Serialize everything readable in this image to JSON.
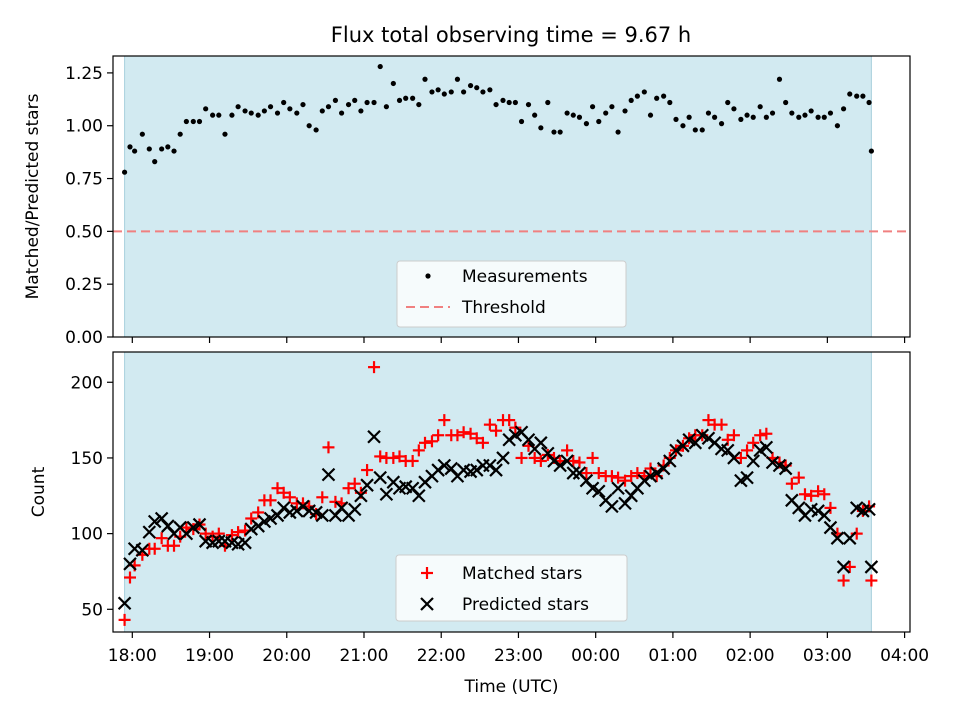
{
  "figure_title": "Flux total observing time = 9.67 h",
  "chart_data": [
    {
      "type": "scatter",
      "panel": "top",
      "title": "Flux total observing time = 9.67 h",
      "xlabel": "",
      "ylabel": "Matched/Predicted stars",
      "xlim": [
        17.75,
        28.07
      ],
      "ylim": [
        0.0,
        1.33
      ],
      "yticks": [
        0.0,
        0.25,
        0.5,
        0.75,
        1.0,
        1.25
      ],
      "ytick_labels": [
        "0.00",
        "0.25",
        "0.50",
        "0.75",
        "1.00",
        "1.25"
      ],
      "shaded_x_range": [
        17.9,
        27.57
      ],
      "shade_color": "#add8e6",
      "legend_position": "lower-center",
      "series": [
        {
          "name": "Measurements",
          "marker": "dot",
          "color": "#000000",
          "x": [
            17.9,
            17.97,
            18.03,
            18.13,
            18.22,
            18.29,
            18.38,
            18.46,
            18.54,
            18.62,
            18.7,
            18.79,
            18.87,
            18.95,
            19.04,
            19.12,
            19.2,
            19.29,
            19.37,
            19.46,
            19.54,
            19.63,
            19.71,
            19.79,
            19.88,
            19.96,
            20.04,
            20.13,
            20.21,
            20.29,
            20.38,
            20.46,
            20.54,
            20.63,
            20.71,
            20.8,
            20.88,
            20.96,
            21.04,
            21.13,
            21.21,
            21.29,
            21.38,
            21.46,
            21.54,
            21.63,
            21.71,
            21.79,
            21.88,
            21.96,
            22.04,
            22.13,
            22.21,
            22.29,
            22.38,
            22.46,
            22.54,
            22.63,
            22.71,
            22.8,
            22.88,
            22.96,
            23.04,
            23.13,
            23.21,
            23.29,
            23.38,
            23.46,
            23.54,
            23.63,
            23.71,
            23.79,
            23.88,
            23.96,
            24.04,
            24.13,
            24.21,
            24.29,
            24.38,
            24.46,
            24.54,
            24.63,
            24.71,
            24.79,
            24.88,
            24.96,
            25.04,
            25.13,
            25.21,
            25.29,
            25.38,
            25.46,
            25.54,
            25.63,
            25.71,
            25.79,
            25.88,
            25.96,
            26.04,
            26.13,
            26.21,
            26.29,
            26.38,
            26.46,
            26.54,
            26.63,
            26.71,
            26.79,
            26.88,
            26.96,
            27.04,
            27.13,
            27.21,
            27.29,
            27.38,
            27.46,
            27.54,
            27.57
          ],
          "y": [
            0.78,
            0.9,
            0.88,
            0.96,
            0.89,
            0.83,
            0.89,
            0.9,
            0.88,
            0.96,
            1.02,
            1.02,
            1.02,
            1.08,
            1.05,
            1.05,
            0.96,
            1.05,
            1.09,
            1.07,
            1.06,
            1.05,
            1.07,
            1.09,
            1.06,
            1.11,
            1.08,
            1.06,
            1.1,
            1.0,
            0.98,
            1.07,
            1.09,
            1.12,
            1.06,
            1.1,
            1.12,
            1.07,
            1.11,
            1.11,
            1.28,
            1.09,
            1.2,
            1.12,
            1.13,
            1.13,
            1.1,
            1.22,
            1.16,
            1.17,
            1.15,
            1.16,
            1.22,
            1.16,
            1.19,
            1.18,
            1.16,
            1.17,
            1.1,
            1.12,
            1.11,
            1.11,
            1.02,
            1.1,
            1.05,
            0.99,
            1.11,
            0.97,
            0.97,
            1.06,
            1.05,
            1.04,
            1.01,
            1.09,
            1.02,
            1.06,
            1.09,
            0.97,
            1.07,
            1.12,
            1.14,
            1.16,
            1.05,
            1.13,
            1.14,
            1.11,
            1.03,
            1.0,
            1.04,
            0.98,
            0.98,
            1.06,
            1.04,
            1.01,
            1.11,
            1.08,
            1.03,
            1.05,
            1.04,
            1.09,
            1.04,
            1.06,
            1.22,
            1.11,
            1.06,
            1.04,
            1.05,
            1.07,
            1.04,
            1.04,
            1.06,
            1.0,
            1.08,
            1.15,
            1.14,
            1.14,
            1.11,
            0.88
          ]
        },
        {
          "name": "Threshold",
          "type": "hline",
          "style": "dashed",
          "color": "#f08080",
          "y": 0.5
        }
      ]
    },
    {
      "type": "scatter",
      "panel": "bottom",
      "title": "",
      "xlabel": "Time (UTC)",
      "ylabel": "Count",
      "xlim": [
        17.75,
        28.07
      ],
      "ylim": [
        35,
        220
      ],
      "yticks": [
        50,
        100,
        150,
        200
      ],
      "ytick_labels": [
        "50",
        "100",
        "150",
        "200"
      ],
      "xticks": [
        18,
        19,
        20,
        21,
        22,
        23,
        24,
        25,
        26,
        27,
        28
      ],
      "xtick_labels": [
        "18:00",
        "19:00",
        "20:00",
        "21:00",
        "22:00",
        "23:00",
        "00:00",
        "01:00",
        "02:00",
        "03:00",
        "04:00"
      ],
      "shaded_x_range": [
        17.9,
        27.57
      ],
      "shade_color": "#add8e6",
      "legend_position": "lower-center",
      "x": [
        17.9,
        17.97,
        18.03,
        18.13,
        18.22,
        18.29,
        18.38,
        18.46,
        18.54,
        18.62,
        18.7,
        18.79,
        18.87,
        18.95,
        19.04,
        19.12,
        19.2,
        19.29,
        19.37,
        19.46,
        19.54,
        19.63,
        19.71,
        19.79,
        19.88,
        19.96,
        20.04,
        20.13,
        20.21,
        20.29,
        20.38,
        20.46,
        20.54,
        20.63,
        20.71,
        20.8,
        20.88,
        20.96,
        21.04,
        21.13,
        21.21,
        21.29,
        21.38,
        21.46,
        21.54,
        21.63,
        21.71,
        21.79,
        21.88,
        21.96,
        22.04,
        22.13,
        22.21,
        22.29,
        22.38,
        22.46,
        22.54,
        22.63,
        22.71,
        22.8,
        22.88,
        22.96,
        23.04,
        23.13,
        23.21,
        23.29,
        23.38,
        23.46,
        23.54,
        23.63,
        23.71,
        23.79,
        23.88,
        23.96,
        24.04,
        24.13,
        24.21,
        24.29,
        24.38,
        24.46,
        24.54,
        24.63,
        24.71,
        24.79,
        24.88,
        24.96,
        25.04,
        25.13,
        25.21,
        25.29,
        25.38,
        25.46,
        25.54,
        25.63,
        25.71,
        25.79,
        25.88,
        25.96,
        26.04,
        26.13,
        26.21,
        26.29,
        26.38,
        26.46,
        26.54,
        26.63,
        26.71,
        26.79,
        26.88,
        26.96,
        27.04,
        27.13,
        27.21,
        27.29,
        27.38,
        27.46,
        27.54,
        27.57
      ],
      "series": [
        {
          "name": "Matched stars",
          "marker": "plus",
          "color": "#ff0000",
          "values": [
            43,
            71,
            79,
            86,
            90,
            90,
            97,
            92,
            92,
            98,
            104,
            103,
            106,
            100,
            98,
            100,
            92,
            99,
            101,
            102,
            110,
            114,
            122,
            122,
            130,
            127,
            124,
            120,
            120,
            118,
            113,
            124,
            157,
            121,
            120,
            130,
            133,
            127,
            142,
            210,
            151,
            150,
            150,
            151,
            148,
            148,
            155,
            160,
            161,
            165,
            175,
            165,
            165,
            167,
            166,
            163,
            160,
            172,
            168,
            175,
            175,
            170,
            150,
            158,
            150,
            148,
            152,
            150,
            148,
            155,
            148,
            147,
            140,
            150,
            140,
            138,
            138,
            137,
            135,
            138,
            140,
            138,
            143,
            138,
            145,
            150,
            155,
            158,
            163,
            165,
            165,
            175,
            172,
            172,
            162,
            165,
            150,
            155,
            160,
            165,
            166,
            150,
            147,
            145,
            133,
            137,
            126,
            125,
            128,
            126,
            117,
            100,
            69,
            78,
            100,
            115,
            118,
            69
          ]
        },
        {
          "name": "Predicted stars",
          "marker": "x",
          "color": "#000000",
          "values": [
            54,
            80,
            90,
            89,
            101,
            108,
            110,
            105,
            100,
            104,
            100,
            104,
            106,
            95,
            94,
            95,
            95,
            94,
            93,
            94,
            103,
            105,
            108,
            110,
            112,
            117,
            114,
            115,
            118,
            115,
            114,
            112,
            139,
            112,
            117,
            112,
            116,
            125,
            132,
            164,
            137,
            126,
            134,
            130,
            131,
            130,
            125,
            134,
            138,
            142,
            145,
            143,
            138,
            142,
            141,
            142,
            145,
            145,
            142,
            150,
            162,
            165,
            167,
            162,
            156,
            160,
            153,
            148,
            145,
            148,
            140,
            140,
            135,
            130,
            128,
            122,
            118,
            130,
            120,
            125,
            130,
            135,
            138,
            140,
            143,
            148,
            155,
            158,
            162,
            160,
            165,
            163,
            160,
            156,
            155,
            150,
            135,
            137,
            148,
            155,
            157,
            147,
            145,
            143,
            122,
            117,
            112,
            116,
            115,
            112,
            104,
            97,
            78,
            97,
            117,
            115,
            116,
            78
          ]
        }
      ]
    }
  ]
}
